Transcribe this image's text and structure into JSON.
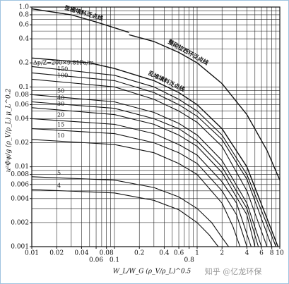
{
  "chart_data": {
    "type": "line",
    "log_x": true,
    "log_y": true,
    "grid": true,
    "color": "#111111",
    "xlabel": "W_L/W_G (ρ_V/ρ_L)^0.5",
    "ylabel": "u²Φψ/g (ρ_V/ρ_L) μ_L^0.2",
    "watermark": "知乎 @亿龙环保",
    "xlim": [
      0.01,
      10
    ],
    "ylim": [
      0.001,
      1
    ],
    "xticks": [
      0.01,
      0.02,
      0.04,
      0.06,
      0.08,
      0.1,
      0.2,
      0.4,
      0.6,
      0.8,
      1,
      2,
      4,
      6,
      8,
      10
    ],
    "yticks": [
      {
        "value": 1,
        "label": "1.0"
      },
      0.8,
      0.6,
      0.4,
      0.2,
      0.1,
      0.08,
      0.06,
      0.04,
      0.02,
      0.01,
      0.008,
      0.006,
      0.004,
      0.002,
      0.001
    ],
    "xgrid": [
      0.01,
      0.02,
      0.03,
      0.04,
      0.05,
      0.06,
      0.07,
      0.08,
      0.09,
      0.1,
      0.2,
      0.3,
      0.4,
      0.5,
      0.6,
      0.7,
      0.8,
      0.9,
      1,
      2,
      3,
      4,
      5,
      6,
      7,
      8,
      9,
      10
    ],
    "ygrid": [
      0.001,
      0.002,
      0.003,
      0.004,
      0.005,
      0.006,
      0.007,
      0.008,
      0.009,
      0.01,
      0.02,
      0.03,
      0.04,
      0.05,
      0.06,
      0.07,
      0.08,
      0.09,
      0.1,
      0.2,
      0.3,
      0.4,
      0.5,
      0.6,
      0.7,
      0.8,
      0.9,
      1
    ],
    "series": [
      {
        "name": "Δp/Z=200×9.81Pa/m",
        "x": [
          0.01,
          0.1,
          0.3,
          0.6,
          1,
          2,
          4,
          9
        ],
        "values": [
          0.18,
          0.14,
          0.1,
          0.07,
          0.05,
          0.025,
          0.008,
          0.001
        ]
      },
      {
        "name": "150",
        "x": [
          0.01,
          0.1,
          0.3,
          0.6,
          1,
          2,
          4,
          8
        ],
        "values": [
          0.15,
          0.12,
          0.085,
          0.06,
          0.043,
          0.022,
          0.007,
          0.001
        ]
      },
      {
        "name": "100",
        "x": [
          0.01,
          0.1,
          0.3,
          0.6,
          1,
          2,
          4,
          7
        ],
        "values": [
          0.125,
          0.1,
          0.07,
          0.05,
          0.036,
          0.018,
          0.005,
          0.001
        ]
      },
      {
        "name": "50",
        "x": [
          0.01,
          0.1,
          0.3,
          0.6,
          1,
          2,
          4,
          6
        ],
        "values": [
          0.08,
          0.065,
          0.048,
          0.035,
          0.025,
          0.012,
          0.0035,
          0.001
        ]
      },
      {
        "name": "40",
        "x": [
          0.01,
          0.1,
          0.3,
          0.6,
          1,
          2,
          4,
          5.5
        ],
        "values": [
          0.065,
          0.054,
          0.04,
          0.03,
          0.021,
          0.01,
          0.003,
          0.001
        ]
      },
      {
        "name": "30",
        "x": [
          0.01,
          0.1,
          0.3,
          0.6,
          1,
          2,
          4,
          5
        ],
        "values": [
          0.055,
          0.045,
          0.034,
          0.025,
          0.018,
          0.0085,
          0.0025,
          0.001
        ]
      },
      {
        "name": "20",
        "x": [
          0.01,
          0.1,
          0.3,
          0.6,
          1,
          2,
          3,
          4.5
        ],
        "values": [
          0.04,
          0.034,
          0.026,
          0.019,
          0.014,
          0.0065,
          0.0035,
          0.001
        ]
      },
      {
        "name": "15",
        "x": [
          0.01,
          0.1,
          0.3,
          0.6,
          1,
          2,
          3,
          4
        ],
        "values": [
          0.03,
          0.026,
          0.02,
          0.015,
          0.011,
          0.005,
          0.0025,
          0.001
        ]
      },
      {
        "name": "10",
        "x": [
          0.01,
          0.1,
          0.3,
          0.6,
          1,
          2,
          2.7,
          3.3
        ],
        "values": [
          0.022,
          0.019,
          0.015,
          0.011,
          0.008,
          0.0035,
          0.0018,
          0.001
        ]
      },
      {
        "name": "5",
        "x": [
          0.01,
          0.1,
          0.3,
          0.6,
          1,
          1.5,
          2,
          2.4
        ],
        "values": [
          0.0075,
          0.0068,
          0.0055,
          0.0042,
          0.003,
          0.002,
          0.0013,
          0.001
        ]
      },
      {
        "name": "4",
        "x": [
          0.01,
          0.1,
          0.3,
          0.6,
          1,
          1.4,
          1.8
        ],
        "values": [
          0.0052,
          0.0047,
          0.0038,
          0.0029,
          0.002,
          0.0014,
          0.001
        ]
      }
    ],
    "flood_lines": [
      {
        "name": "弦栅填料泛点线",
        "x": [
          0.01,
          0.03,
          0.06,
          0.1,
          0.15
        ],
        "values": [
          0.95,
          0.8,
          0.65,
          0.55,
          0.48
        ]
      },
      {
        "name": "乱堆填料泛点线",
        "x": [
          0.01,
          0.05,
          0.1,
          0.3,
          0.6,
          1,
          2,
          4,
          9.5
        ],
        "values": [
          0.23,
          0.2,
          0.17,
          0.12,
          0.085,
          0.06,
          0.03,
          0.01,
          0.001
        ]
      },
      {
        "name": "整砌拉西环泛点线",
        "x": [
          0.15,
          0.3,
          0.6,
          1,
          2,
          4,
          7,
          10
        ],
        "values": [
          0.45,
          0.37,
          0.27,
          0.2,
          0.11,
          0.045,
          0.016,
          0.0068
        ]
      }
    ]
  }
}
